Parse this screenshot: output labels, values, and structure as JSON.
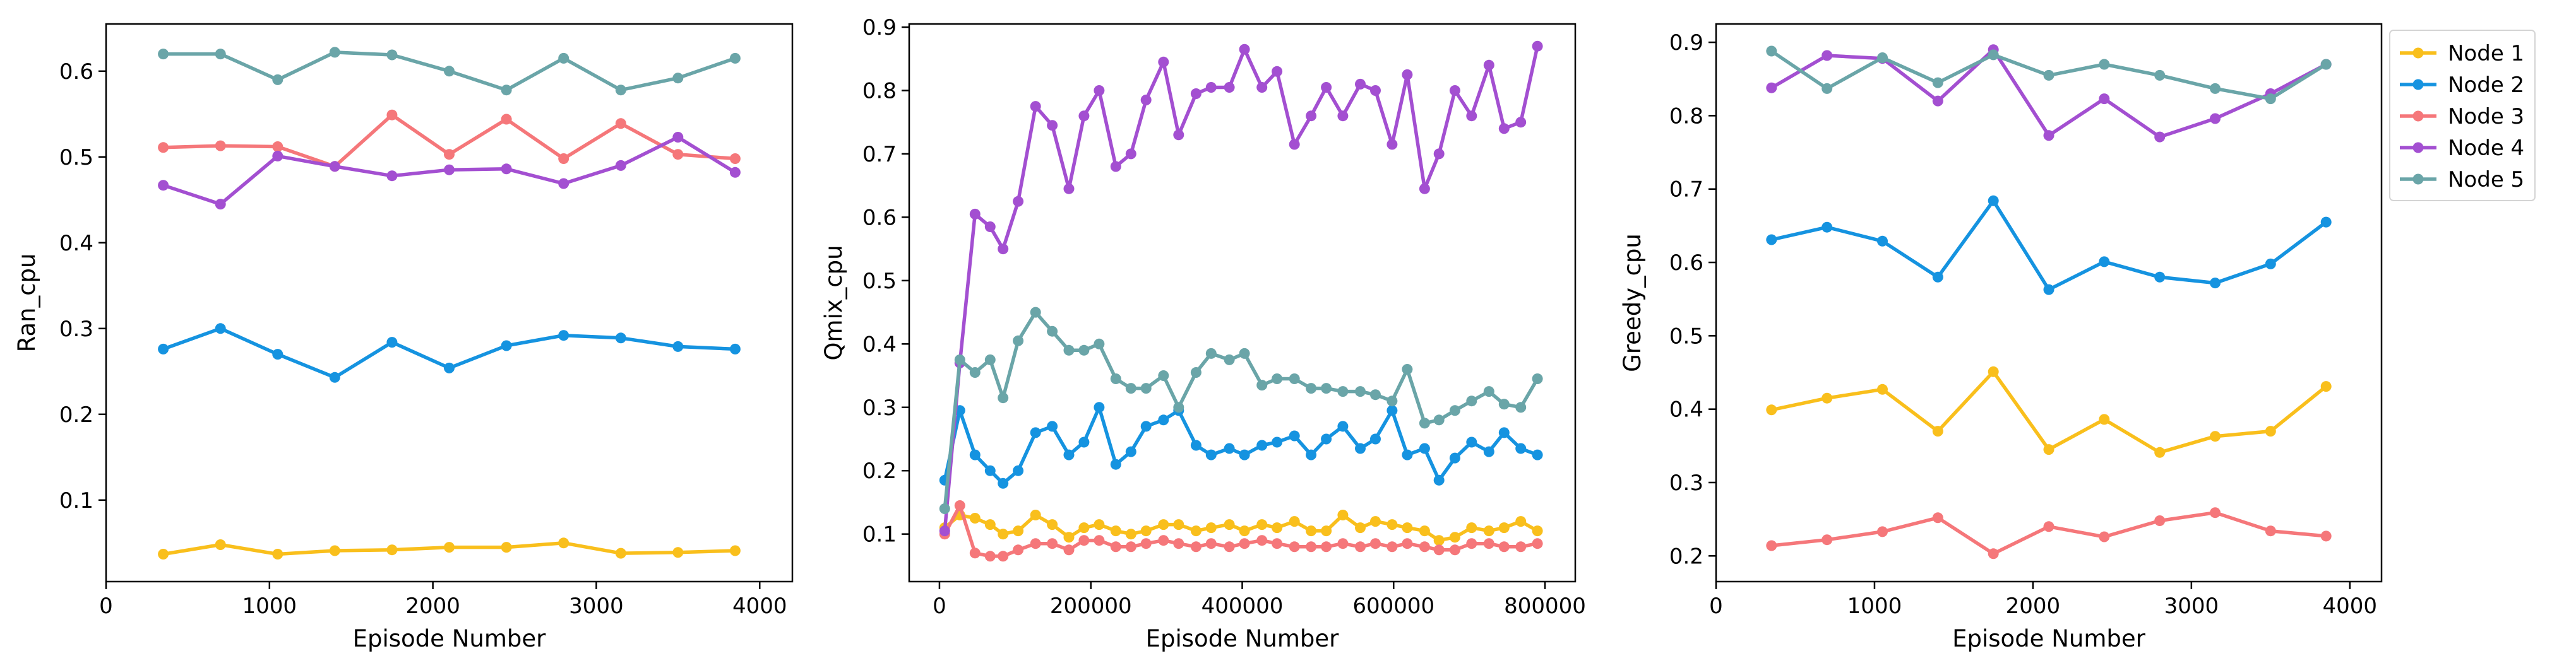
{
  "chart_data": [
    {
      "type": "line",
      "xlabel": "Episode Number",
      "ylabel": "Ran_cpu",
      "xlim": [
        0,
        4200
      ],
      "ylim": [
        0.005,
        0.655
      ],
      "xticks": [
        0,
        1000,
        2000,
        3000,
        4000
      ],
      "xtick_labels": [
        "0",
        "1000",
        "2000",
        "3000",
        "4000"
      ],
      "yticks": [
        0.1,
        0.2,
        0.3,
        0.4,
        0.5,
        0.6
      ],
      "ytick_labels": [
        "0.1",
        "0.2",
        "0.3",
        "0.4",
        "0.5",
        "0.6"
      ],
      "x": [
        350,
        700,
        1050,
        1400,
        1750,
        2100,
        2450,
        2800,
        3150,
        3500,
        3850
      ],
      "series": [
        {
          "name": "Node 1",
          "color": "#f9bf1c",
          "values": [
            0.037,
            0.048,
            0.037,
            0.041,
            0.042,
            0.045,
            0.045,
            0.05,
            0.038,
            0.039,
            0.041
          ]
        },
        {
          "name": "Node 2",
          "color": "#1593e0",
          "values": [
            0.276,
            0.3,
            0.27,
            0.243,
            0.284,
            0.254,
            0.28,
            0.292,
            0.289,
            0.279,
            0.276
          ]
        },
        {
          "name": "Node 3",
          "color": "#f5777a",
          "values": [
            0.511,
            0.513,
            0.512,
            0.489,
            0.549,
            0.503,
            0.544,
            0.498,
            0.539,
            0.503,
            0.498
          ]
        },
        {
          "name": "Node 4",
          "color": "#a34fd1",
          "values": [
            0.467,
            0.445,
            0.501,
            0.489,
            0.478,
            0.485,
            0.486,
            0.469,
            0.49,
            0.523,
            0.482
          ]
        },
        {
          "name": "Node 5",
          "color": "#6aa5a8",
          "values": [
            0.62,
            0.62,
            0.59,
            0.622,
            0.619,
            0.6,
            0.578,
            0.615,
            0.578,
            0.592,
            0.615
          ]
        }
      ]
    },
    {
      "type": "line",
      "xlabel": "Episode Number",
      "ylabel": "Qmix_cpu",
      "xlim": [
        -40000,
        840000
      ],
      "ylim": [
        0.025,
        0.905
      ],
      "xticks": [
        0,
        200000,
        400000,
        600000,
        800000
      ],
      "xtick_labels": [
        "0",
        "200000",
        "400000",
        "600000",
        "800000"
      ],
      "yticks": [
        0.1,
        0.2,
        0.3,
        0.4,
        0.5,
        0.6,
        0.7,
        0.8,
        0.9
      ],
      "ytick_labels": [
        "0.1",
        "0.2",
        "0.3",
        "0.4",
        "0.5",
        "0.6",
        "0.7",
        "0.8",
        "0.9"
      ],
      "x": [
        7000,
        27000,
        47000,
        67000,
        84000,
        104000,
        127000,
        149000,
        171000,
        191000,
        211000,
        233000,
        253000,
        273000,
        296000,
        316000,
        339000,
        359000,
        383000,
        403000,
        426000,
        446000,
        469000,
        491000,
        511000,
        533000,
        556000,
        576000,
        598000,
        618000,
        641000,
        660000,
        681000,
        703000,
        726000,
        746000,
        768000,
        790000
      ],
      "series": [
        {
          "name": "Node 1",
          "color": "#f9bf1c",
          "values": [
            0.11,
            0.13,
            0.125,
            0.115,
            0.1,
            0.105,
            0.13,
            0.115,
            0.095,
            0.11,
            0.115,
            0.105,
            0.1,
            0.105,
            0.115,
            0.115,
            0.105,
            0.11,
            0.115,
            0.105,
            0.115,
            0.11,
            0.12,
            0.105,
            0.105,
            0.13,
            0.11,
            0.12,
            0.115,
            0.11,
            0.105,
            0.09,
            0.095,
            0.11,
            0.105,
            0.11,
            0.12,
            0.105
          ]
        },
        {
          "name": "Node 2",
          "color": "#1593e0",
          "values": [
            0.185,
            0.295,
            0.225,
            0.2,
            0.18,
            0.2,
            0.26,
            0.27,
            0.225,
            0.245,
            0.3,
            0.21,
            0.23,
            0.27,
            0.28,
            0.295,
            0.24,
            0.225,
            0.235,
            0.225,
            0.24,
            0.245,
            0.255,
            0.225,
            0.25,
            0.27,
            0.235,
            0.25,
            0.295,
            0.225,
            0.235,
            0.185,
            0.22,
            0.245,
            0.23,
            0.26,
            0.235,
            0.225
          ]
        },
        {
          "name": "Node 3",
          "color": "#f5777a",
          "values": [
            0.1,
            0.145,
            0.07,
            0.065,
            0.065,
            0.075,
            0.085,
            0.085,
            0.075,
            0.09,
            0.09,
            0.08,
            0.08,
            0.085,
            0.09,
            0.085,
            0.08,
            0.085,
            0.08,
            0.085,
            0.09,
            0.085,
            0.08,
            0.08,
            0.08,
            0.085,
            0.08,
            0.085,
            0.08,
            0.085,
            0.08,
            0.075,
            0.075,
            0.085,
            0.085,
            0.08,
            0.08,
            0.085
          ]
        },
        {
          "name": "Node 4",
          "color": "#a34fd1",
          "values": [
            0.105,
            0.37,
            0.605,
            0.585,
            0.55,
            0.625,
            0.775,
            0.745,
            0.645,
            0.76,
            0.8,
            0.68,
            0.7,
            0.785,
            0.845,
            0.73,
            0.795,
            0.805,
            0.805,
            0.865,
            0.805,
            0.83,
            0.715,
            0.76,
            0.805,
            0.76,
            0.81,
            0.8,
            0.715,
            0.825,
            0.645,
            0.7,
            0.8,
            0.76,
            0.84,
            0.74,
            0.75,
            0.87
          ]
        },
        {
          "name": "Node 5",
          "color": "#6aa5a8",
          "values": [
            0.14,
            0.375,
            0.355,
            0.375,
            0.315,
            0.405,
            0.45,
            0.42,
            0.39,
            0.39,
            0.4,
            0.345,
            0.33,
            0.33,
            0.35,
            0.3,
            0.355,
            0.385,
            0.375,
            0.385,
            0.335,
            0.345,
            0.345,
            0.33,
            0.33,
            0.325,
            0.325,
            0.32,
            0.31,
            0.36,
            0.275,
            0.28,
            0.295,
            0.31,
            0.325,
            0.305,
            0.3,
            0.345
          ]
        }
      ]
    },
    {
      "type": "line",
      "xlabel": "Episode Number",
      "ylabel": "Greedy_cpu",
      "xlim": [
        0,
        4200
      ],
      "ylim": [
        0.165,
        0.925
      ],
      "xticks": [
        0,
        1000,
        2000,
        3000,
        4000
      ],
      "xtick_labels": [
        "0",
        "1000",
        "2000",
        "3000",
        "4000"
      ],
      "yticks": [
        0.2,
        0.3,
        0.4,
        0.5,
        0.6,
        0.7,
        0.8,
        0.9
      ],
      "ytick_labels": [
        "0.2",
        "0.3",
        "0.4",
        "0.5",
        "0.6",
        "0.7",
        "0.8",
        "0.9"
      ],
      "x": [
        350,
        700,
        1050,
        1400,
        1750,
        2100,
        2450,
        2800,
        3150,
        3500,
        3850
      ],
      "series": [
        {
          "name": "Node 1",
          "color": "#f9bf1c",
          "values": [
            0.399,
            0.415,
            0.427,
            0.37,
            0.451,
            0.345,
            0.386,
            0.341,
            0.363,
            0.37,
            0.431
          ]
        },
        {
          "name": "Node 2",
          "color": "#1593e0",
          "values": [
            0.631,
            0.648,
            0.629,
            0.58,
            0.684,
            0.563,
            0.601,
            0.58,
            0.572,
            0.598,
            0.655
          ]
        },
        {
          "name": "Node 3",
          "color": "#f5777a",
          "values": [
            0.214,
            0.222,
            0.233,
            0.252,
            0.203,
            0.24,
            0.226,
            0.248,
            0.259,
            0.234,
            0.227
          ]
        },
        {
          "name": "Node 4",
          "color": "#a34fd1",
          "values": [
            0.838,
            0.882,
            0.878,
            0.82,
            0.89,
            0.773,
            0.823,
            0.771,
            0.796,
            0.83,
            0.87
          ]
        },
        {
          "name": "Node 5",
          "color": "#6aa5a8",
          "values": [
            0.888,
            0.837,
            0.879,
            0.845,
            0.883,
            0.855,
            0.87,
            0.855,
            0.837,
            0.823,
            0.87
          ]
        }
      ],
      "legend": {
        "placement": "outside-top-right",
        "entries": [
          "Node 1",
          "Node 2",
          "Node 3",
          "Node 4",
          "Node 5"
        ]
      }
    }
  ]
}
